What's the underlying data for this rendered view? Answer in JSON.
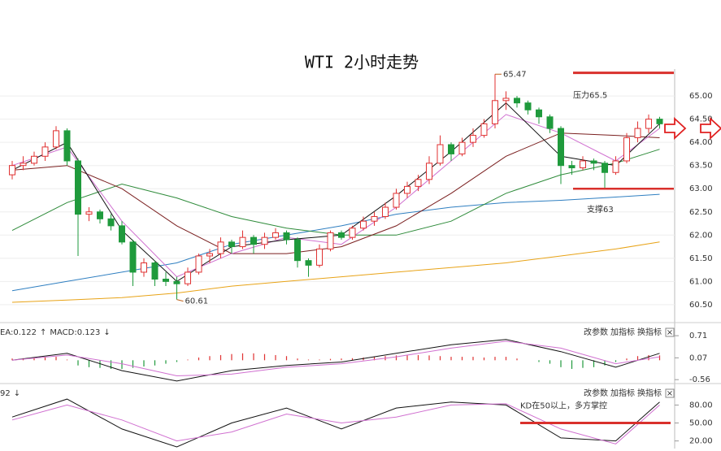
{
  "chart_data": [
    {
      "type": "candlestick",
      "title": "WTI 2小时走势",
      "up_color": "#e03131",
      "down_color": "#1f9a3c",
      "ylim": [
        60.2,
        65.58
      ],
      "yticks": [
        {
          "value": 65,
          "label": "65.00"
        },
        {
          "value": 64.5,
          "label": "64.50"
        },
        {
          "value": 64,
          "label": "64.00"
        },
        {
          "value": 63.5,
          "label": "63.50"
        },
        {
          "value": 63,
          "label": "63.00"
        },
        {
          "value": 62.5,
          "label": "62.50"
        },
        {
          "value": 62,
          "label": "62.00"
        },
        {
          "value": 61.5,
          "label": "61.50"
        },
        {
          "value": 61,
          "label": "61.00"
        },
        {
          "value": 60.5,
          "label": "60.50"
        }
      ],
      "grid": true,
      "ohlc": [
        [
          63.3,
          63.6,
          63.2,
          63.5
        ],
        [
          63.5,
          63.7,
          63.4,
          63.55
        ],
        [
          63.55,
          63.8,
          63.5,
          63.7
        ],
        [
          63.7,
          64.0,
          63.6,
          63.9
        ],
        [
          63.9,
          64.35,
          63.85,
          64.25
        ],
        [
          64.25,
          64.3,
          63.5,
          63.6
        ],
        [
          63.6,
          63.65,
          61.55,
          62.45
        ],
        [
          62.45,
          62.6,
          62.3,
          62.5
        ],
        [
          62.5,
          62.55,
          62.25,
          62.35
        ],
        [
          62.35,
          62.45,
          62.1,
          62.2
        ],
        [
          62.2,
          62.3,
          61.8,
          61.85
        ],
        [
          61.85,
          61.9,
          60.9,
          61.2
        ],
        [
          61.2,
          61.5,
          61.1,
          61.4
        ],
        [
          61.4,
          61.45,
          60.9,
          61.05
        ],
        [
          61.05,
          61.2,
          60.9,
          61.0
        ],
        [
          61.0,
          61.1,
          60.61,
          60.95
        ],
        [
          60.95,
          61.3,
          60.9,
          61.2
        ],
        [
          61.2,
          61.6,
          61.15,
          61.55
        ],
        [
          61.55,
          61.7,
          61.4,
          61.6
        ],
        [
          61.6,
          61.95,
          61.5,
          61.85
        ],
        [
          61.85,
          61.9,
          61.6,
          61.75
        ],
        [
          61.75,
          62.1,
          61.7,
          61.95
        ],
        [
          61.95,
          62.0,
          61.6,
          61.8
        ],
        [
          61.8,
          62.05,
          61.7,
          61.95
        ],
        [
          61.95,
          62.15,
          61.9,
          62.05
        ],
        [
          62.05,
          62.1,
          61.8,
          61.9
        ],
        [
          61.9,
          61.95,
          61.3,
          61.45
        ],
        [
          61.45,
          61.5,
          61.1,
          61.35
        ],
        [
          61.35,
          61.8,
          61.3,
          61.7
        ],
        [
          61.7,
          62.1,
          61.65,
          62.05
        ],
        [
          62.05,
          62.1,
          61.9,
          61.95
        ],
        [
          61.95,
          62.2,
          61.9,
          62.15
        ],
        [
          62.15,
          62.4,
          62.1,
          62.3
        ],
        [
          62.3,
          62.5,
          62.2,
          62.4
        ],
        [
          62.4,
          62.7,
          62.35,
          62.6
        ],
        [
          62.6,
          63.0,
          62.55,
          62.9
        ],
        [
          62.9,
          63.15,
          62.8,
          63.05
        ],
        [
          63.05,
          63.3,
          62.95,
          63.2
        ],
        [
          63.2,
          63.7,
          63.1,
          63.55
        ],
        [
          63.55,
          64.15,
          63.5,
          63.95
        ],
        [
          63.95,
          64.0,
          63.6,
          63.75
        ],
        [
          63.75,
          64.1,
          63.7,
          64.0
        ],
        [
          64.0,
          64.3,
          63.9,
          64.15
        ],
        [
          64.15,
          64.5,
          64.1,
          64.4
        ],
        [
          64.4,
          65.47,
          64.3,
          64.9
        ],
        [
          64.9,
          65.1,
          64.7,
          64.95
        ],
        [
          64.95,
          65.0,
          64.75,
          64.85
        ],
        [
          64.85,
          64.9,
          64.6,
          64.7
        ],
        [
          64.7,
          64.75,
          64.4,
          64.55
        ],
        [
          64.55,
          64.6,
          64.2,
          64.3
        ],
        [
          64.3,
          64.35,
          63.1,
          63.5
        ],
        [
          63.5,
          63.6,
          63.3,
          63.45
        ],
        [
          63.45,
          63.7,
          63.4,
          63.6
        ],
        [
          63.6,
          63.65,
          63.4,
          63.55
        ],
        [
          63.55,
          63.6,
          63.0,
          63.35
        ],
        [
          63.35,
          63.7,
          63.3,
          63.6
        ],
        [
          63.6,
          64.2,
          63.55,
          64.1
        ],
        [
          64.1,
          64.45,
          64.0,
          64.3
        ],
        [
          64.3,
          64.6,
          64.2,
          64.5
        ],
        [
          64.5,
          64.55,
          64.3,
          64.4
        ]
      ],
      "x": [
        0,
        5,
        10,
        15,
        20,
        25,
        30,
        35,
        40,
        45,
        50,
        55,
        59
      ],
      "series": [
        {
          "color": "#e8a317",
          "values": [
            60.55,
            60.6,
            60.65,
            60.75,
            60.9,
            61.0,
            61.1,
            61.2,
            61.3,
            61.4,
            61.55,
            61.7,
            61.85
          ]
        },
        {
          "color": "#2f7fc1",
          "values": [
            60.8,
            61.0,
            61.2,
            61.4,
            61.8,
            62.0,
            62.2,
            62.45,
            62.6,
            62.7,
            62.75,
            62.82,
            62.88
          ]
        },
        {
          "color": "#2e8b3a",
          "values": [
            62.1,
            62.7,
            63.1,
            62.8,
            62.4,
            62.15,
            62.0,
            62.0,
            62.3,
            62.9,
            63.3,
            63.55,
            63.85
          ]
        },
        {
          "color": "#7a1f1f",
          "values": [
            63.4,
            63.5,
            63.0,
            62.2,
            61.6,
            61.6,
            61.75,
            62.2,
            62.9,
            63.7,
            64.2,
            64.15,
            64.1
          ]
        },
        {
          "color": "#d070d0",
          "values": [
            63.5,
            63.9,
            62.3,
            61.1,
            61.6,
            61.95,
            61.8,
            62.6,
            63.6,
            64.6,
            64.2,
            63.6,
            64.3
          ]
        },
        {
          "color": "#111111",
          "values": [
            63.4,
            64.0,
            62.1,
            61.0,
            61.75,
            61.9,
            62.0,
            62.85,
            63.8,
            64.85,
            63.7,
            63.5,
            64.4
          ]
        }
      ],
      "resistance": {
        "value": 65.5,
        "label": "压力65.5"
      },
      "support": {
        "value": 63,
        "label": "支撑63"
      },
      "line_color": "#d9302c"
    },
    {
      "type": "macd",
      "label_parts": [
        "EA:0.122",
        "↑",
        "MACD:0.123",
        "↓"
      ],
      "buttons": [
        "改参数",
        "加指标",
        "换指标"
      ],
      "close": "×",
      "up_color": "#e03131",
      "down_color": "#1f9a3c",
      "ylim": [
        -0.72,
        0.9
      ],
      "yticks": [
        0.71,
        0.07,
        -0.56
      ],
      "histogram": [
        0.05,
        0.06,
        0.08,
        0.1,
        0.1,
        0.02,
        -0.15,
        -0.2,
        -0.22,
        -0.25,
        -0.25,
        -0.22,
        -0.18,
        -0.15,
        -0.1,
        -0.05,
        0.02,
        0.08,
        0.12,
        0.15,
        0.18,
        0.2,
        0.2,
        0.18,
        0.15,
        0.12,
        0.05,
        0.02,
        0.02,
        0.04,
        0.05,
        0.06,
        0.08,
        0.1,
        0.12,
        0.14,
        0.15,
        0.15,
        0.14,
        0.12,
        0.1,
        0.1,
        0.1,
        0.08,
        0.1,
        0.1,
        0.05,
        0.0,
        -0.05,
        -0.1,
        -0.2,
        -0.25,
        -0.22,
        -0.2,
        -0.15,
        -0.05,
        0.05,
        0.12,
        0.15,
        0.14
      ],
      "x": [
        0,
        5,
        10,
        15,
        20,
        25,
        30,
        35,
        40,
        45,
        50,
        55,
        59
      ],
      "series": [
        {
          "color": "#111111",
          "values": [
            0.0,
            0.2,
            -0.3,
            -0.6,
            -0.3,
            -0.15,
            -0.05,
            0.2,
            0.45,
            0.6,
            0.25,
            -0.2,
            0.2
          ]
        },
        {
          "color": "#d070d0",
          "values": [
            0.0,
            0.15,
            -0.1,
            -0.45,
            -0.4,
            -0.2,
            -0.1,
            0.1,
            0.35,
            0.55,
            0.35,
            -0.1,
            0.1
          ]
        }
      ]
    },
    {
      "type": "kd",
      "label_parts": [
        "92",
        "↓"
      ],
      "buttons": [
        "改参数",
        "加指标",
        "换指标"
      ],
      "close": "×",
      "ylim": [
        10,
        105
      ],
      "yticks": [
        {
          "value": 80,
          "label": "80.00"
        },
        {
          "value": 50,
          "label": "50.00"
        },
        {
          "value": 20,
          "label": "20.00"
        }
      ],
      "x": [
        0,
        5,
        10,
        15,
        20,
        25,
        30,
        35,
        40,
        45,
        50,
        55,
        59
      ],
      "series": [
        {
          "color": "#111111",
          "values": [
            60,
            90,
            40,
            10,
            50,
            75,
            40,
            75,
            85,
            80,
            25,
            20,
            85
          ]
        },
        {
          "color": "#d070d0",
          "values": [
            55,
            80,
            55,
            20,
            35,
            65,
            50,
            60,
            80,
            82,
            40,
            15,
            80
          ]
        }
      ],
      "threshold": {
        "value": 50,
        "label": "KD在50以上，多方掌控"
      },
      "line_color": "#d9302c"
    }
  ]
}
